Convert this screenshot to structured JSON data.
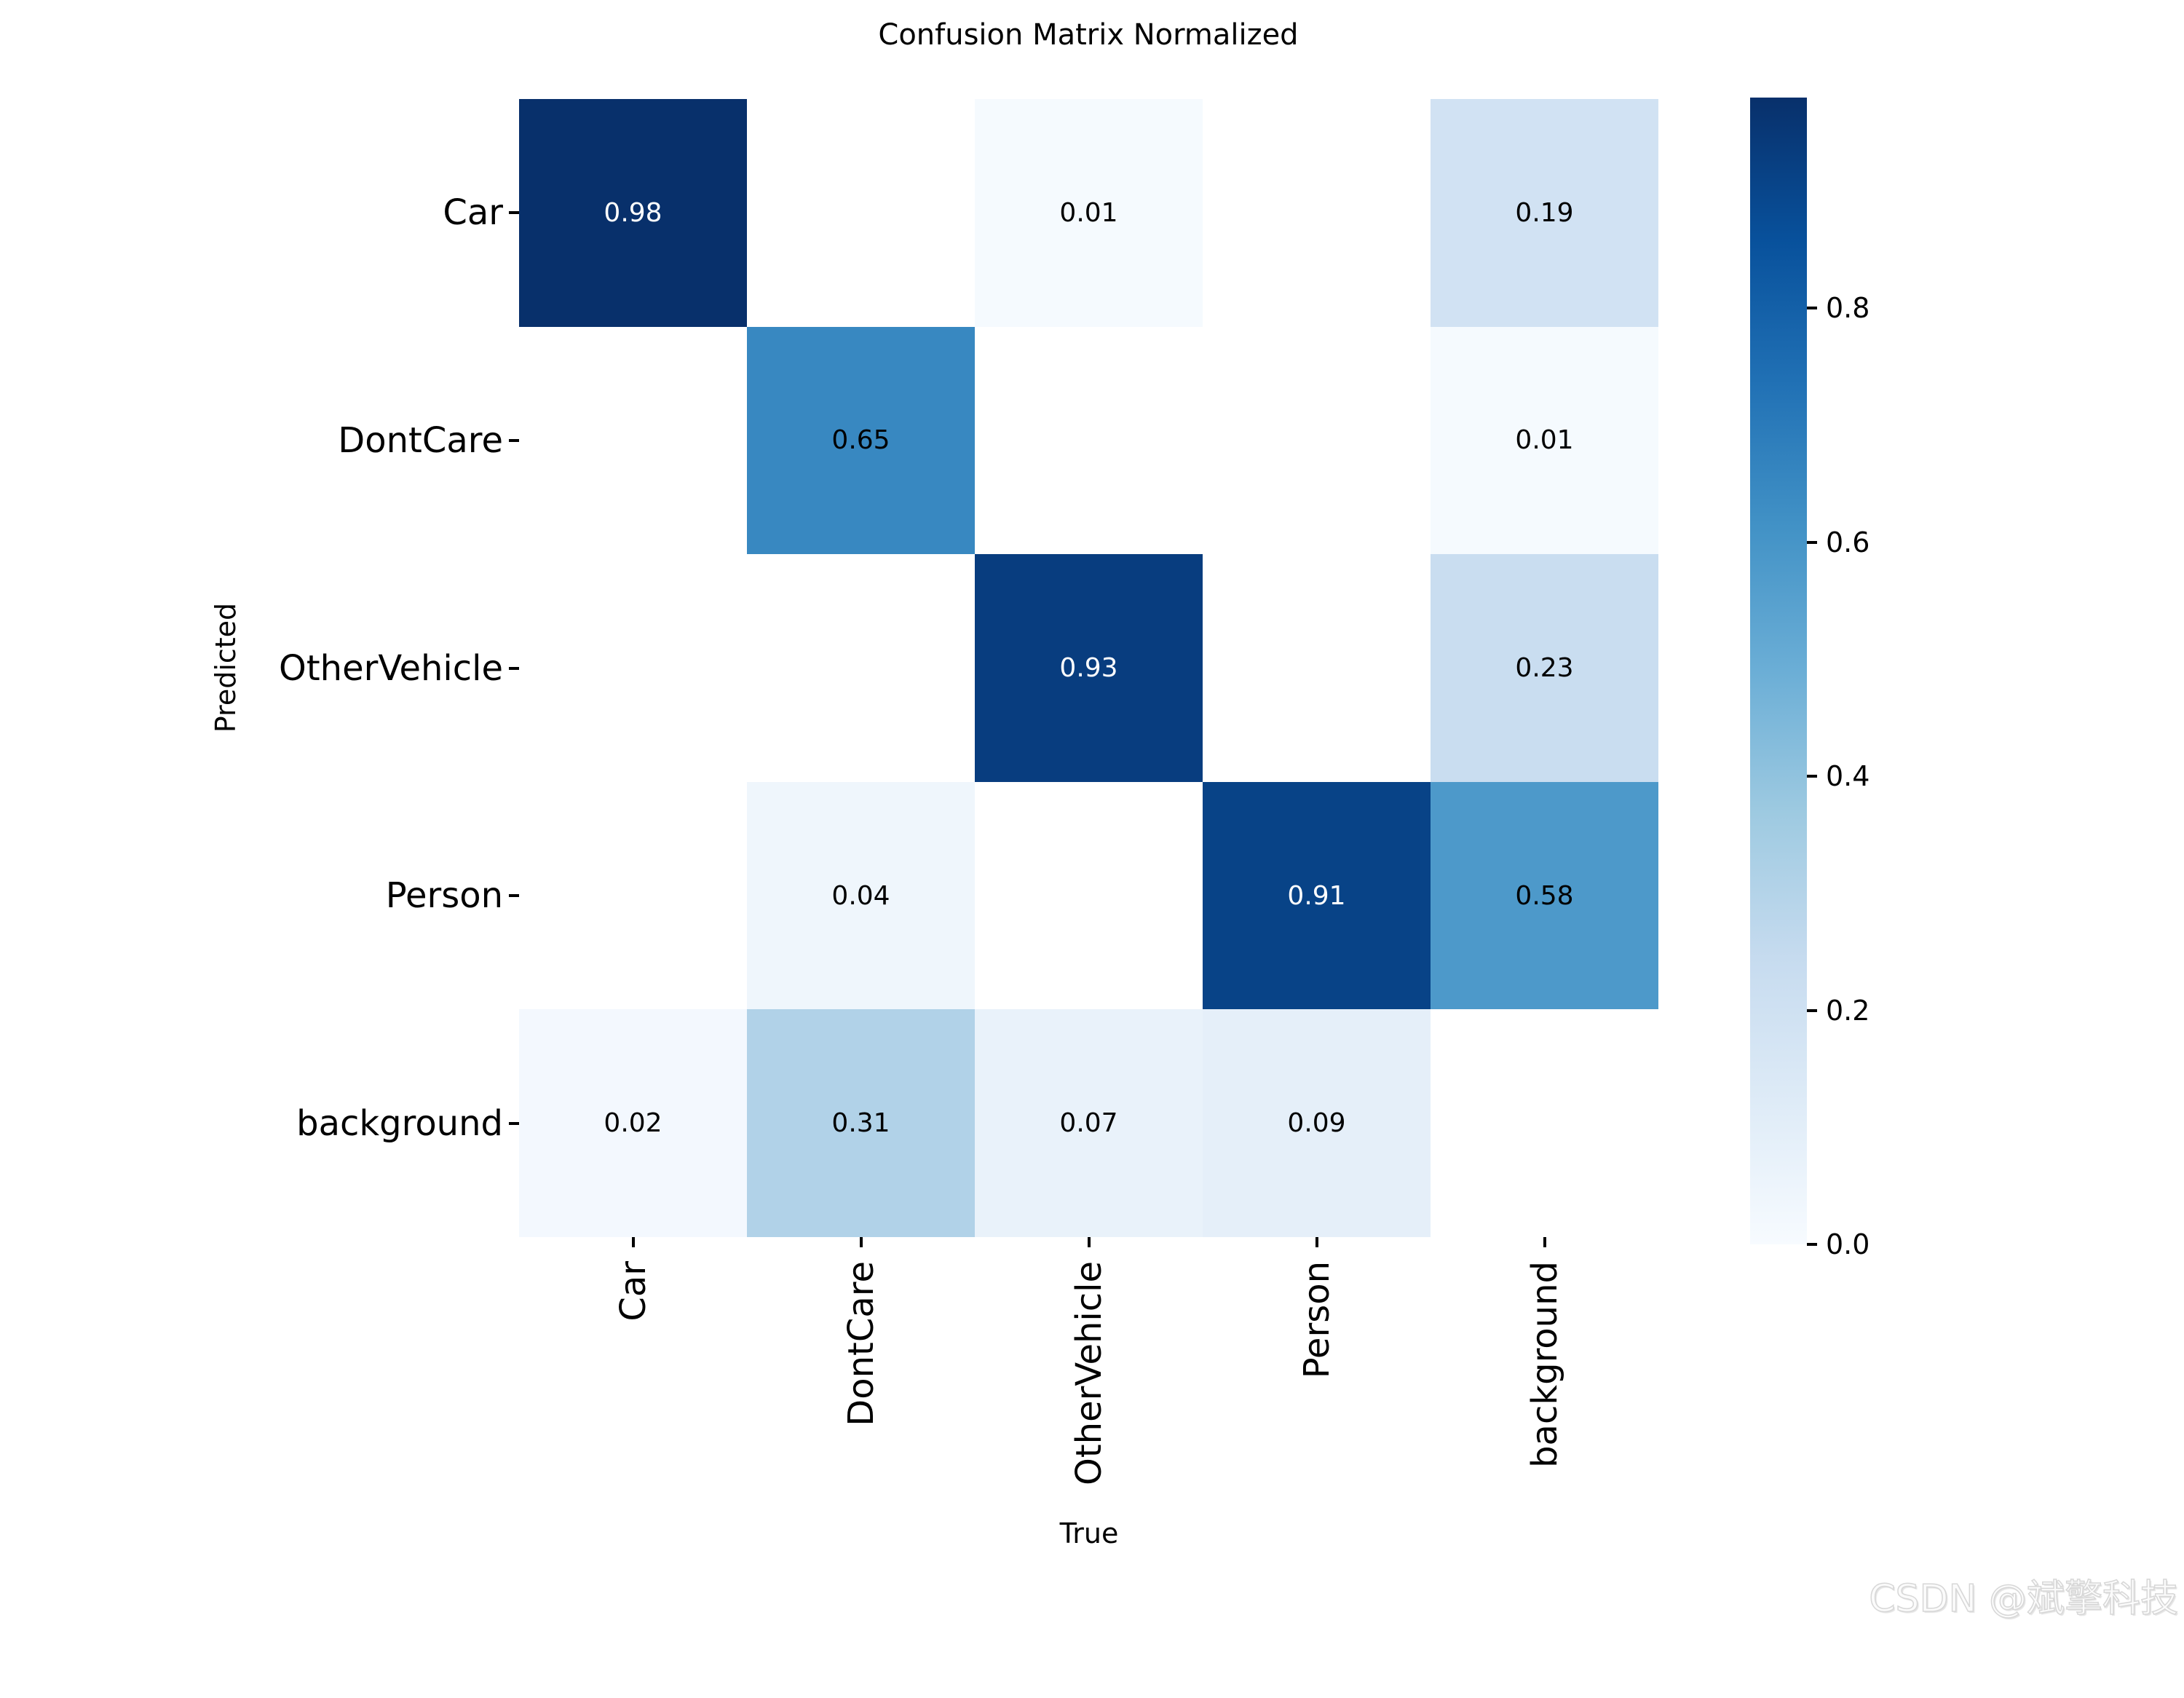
{
  "chart_data": {
    "type": "heatmap",
    "title": "Confusion Matrix Normalized",
    "xlabel": "True",
    "ylabel": "Predicted",
    "x_categories": [
      "Car",
      "DontCare",
      "OtherVehicle",
      "Person",
      "background"
    ],
    "y_categories": [
      "Car",
      "DontCare",
      "OtherVehicle",
      "Person",
      "background"
    ],
    "matrix": [
      [
        0.98,
        null,
        0.01,
        null,
        0.19
      ],
      [
        null,
        0.65,
        null,
        null,
        0.01
      ],
      [
        null,
        null,
        0.93,
        null,
        0.23
      ],
      [
        null,
        0.04,
        null,
        0.91,
        0.58
      ],
      [
        0.02,
        0.31,
        0.07,
        0.09,
        null
      ]
    ],
    "vmin": 0.0,
    "vmax": 0.98,
    "colormap": "Blues",
    "colormap_stops": [
      [
        0.0,
        "#f7fbff"
      ],
      [
        0.125,
        "#deebf7"
      ],
      [
        0.25,
        "#c6dbef"
      ],
      [
        0.375,
        "#9ecae1"
      ],
      [
        0.5,
        "#6baed6"
      ],
      [
        0.625,
        "#4292c6"
      ],
      [
        0.75,
        "#2171b5"
      ],
      [
        0.875,
        "#08519c"
      ],
      [
        1.0,
        "#08306b"
      ]
    ],
    "blank_cells_masked_white": true,
    "annotation_colors": {
      "dark_cell_text": "#ffffff",
      "light_cell_text": "#000000"
    },
    "colorbar_ticks": [
      0.0,
      0.2,
      0.4,
      0.6,
      0.8
    ],
    "legend_position": "right-colorbar",
    "grid": false
  },
  "watermark": {
    "text": "CSDN @斌擎科技"
  }
}
